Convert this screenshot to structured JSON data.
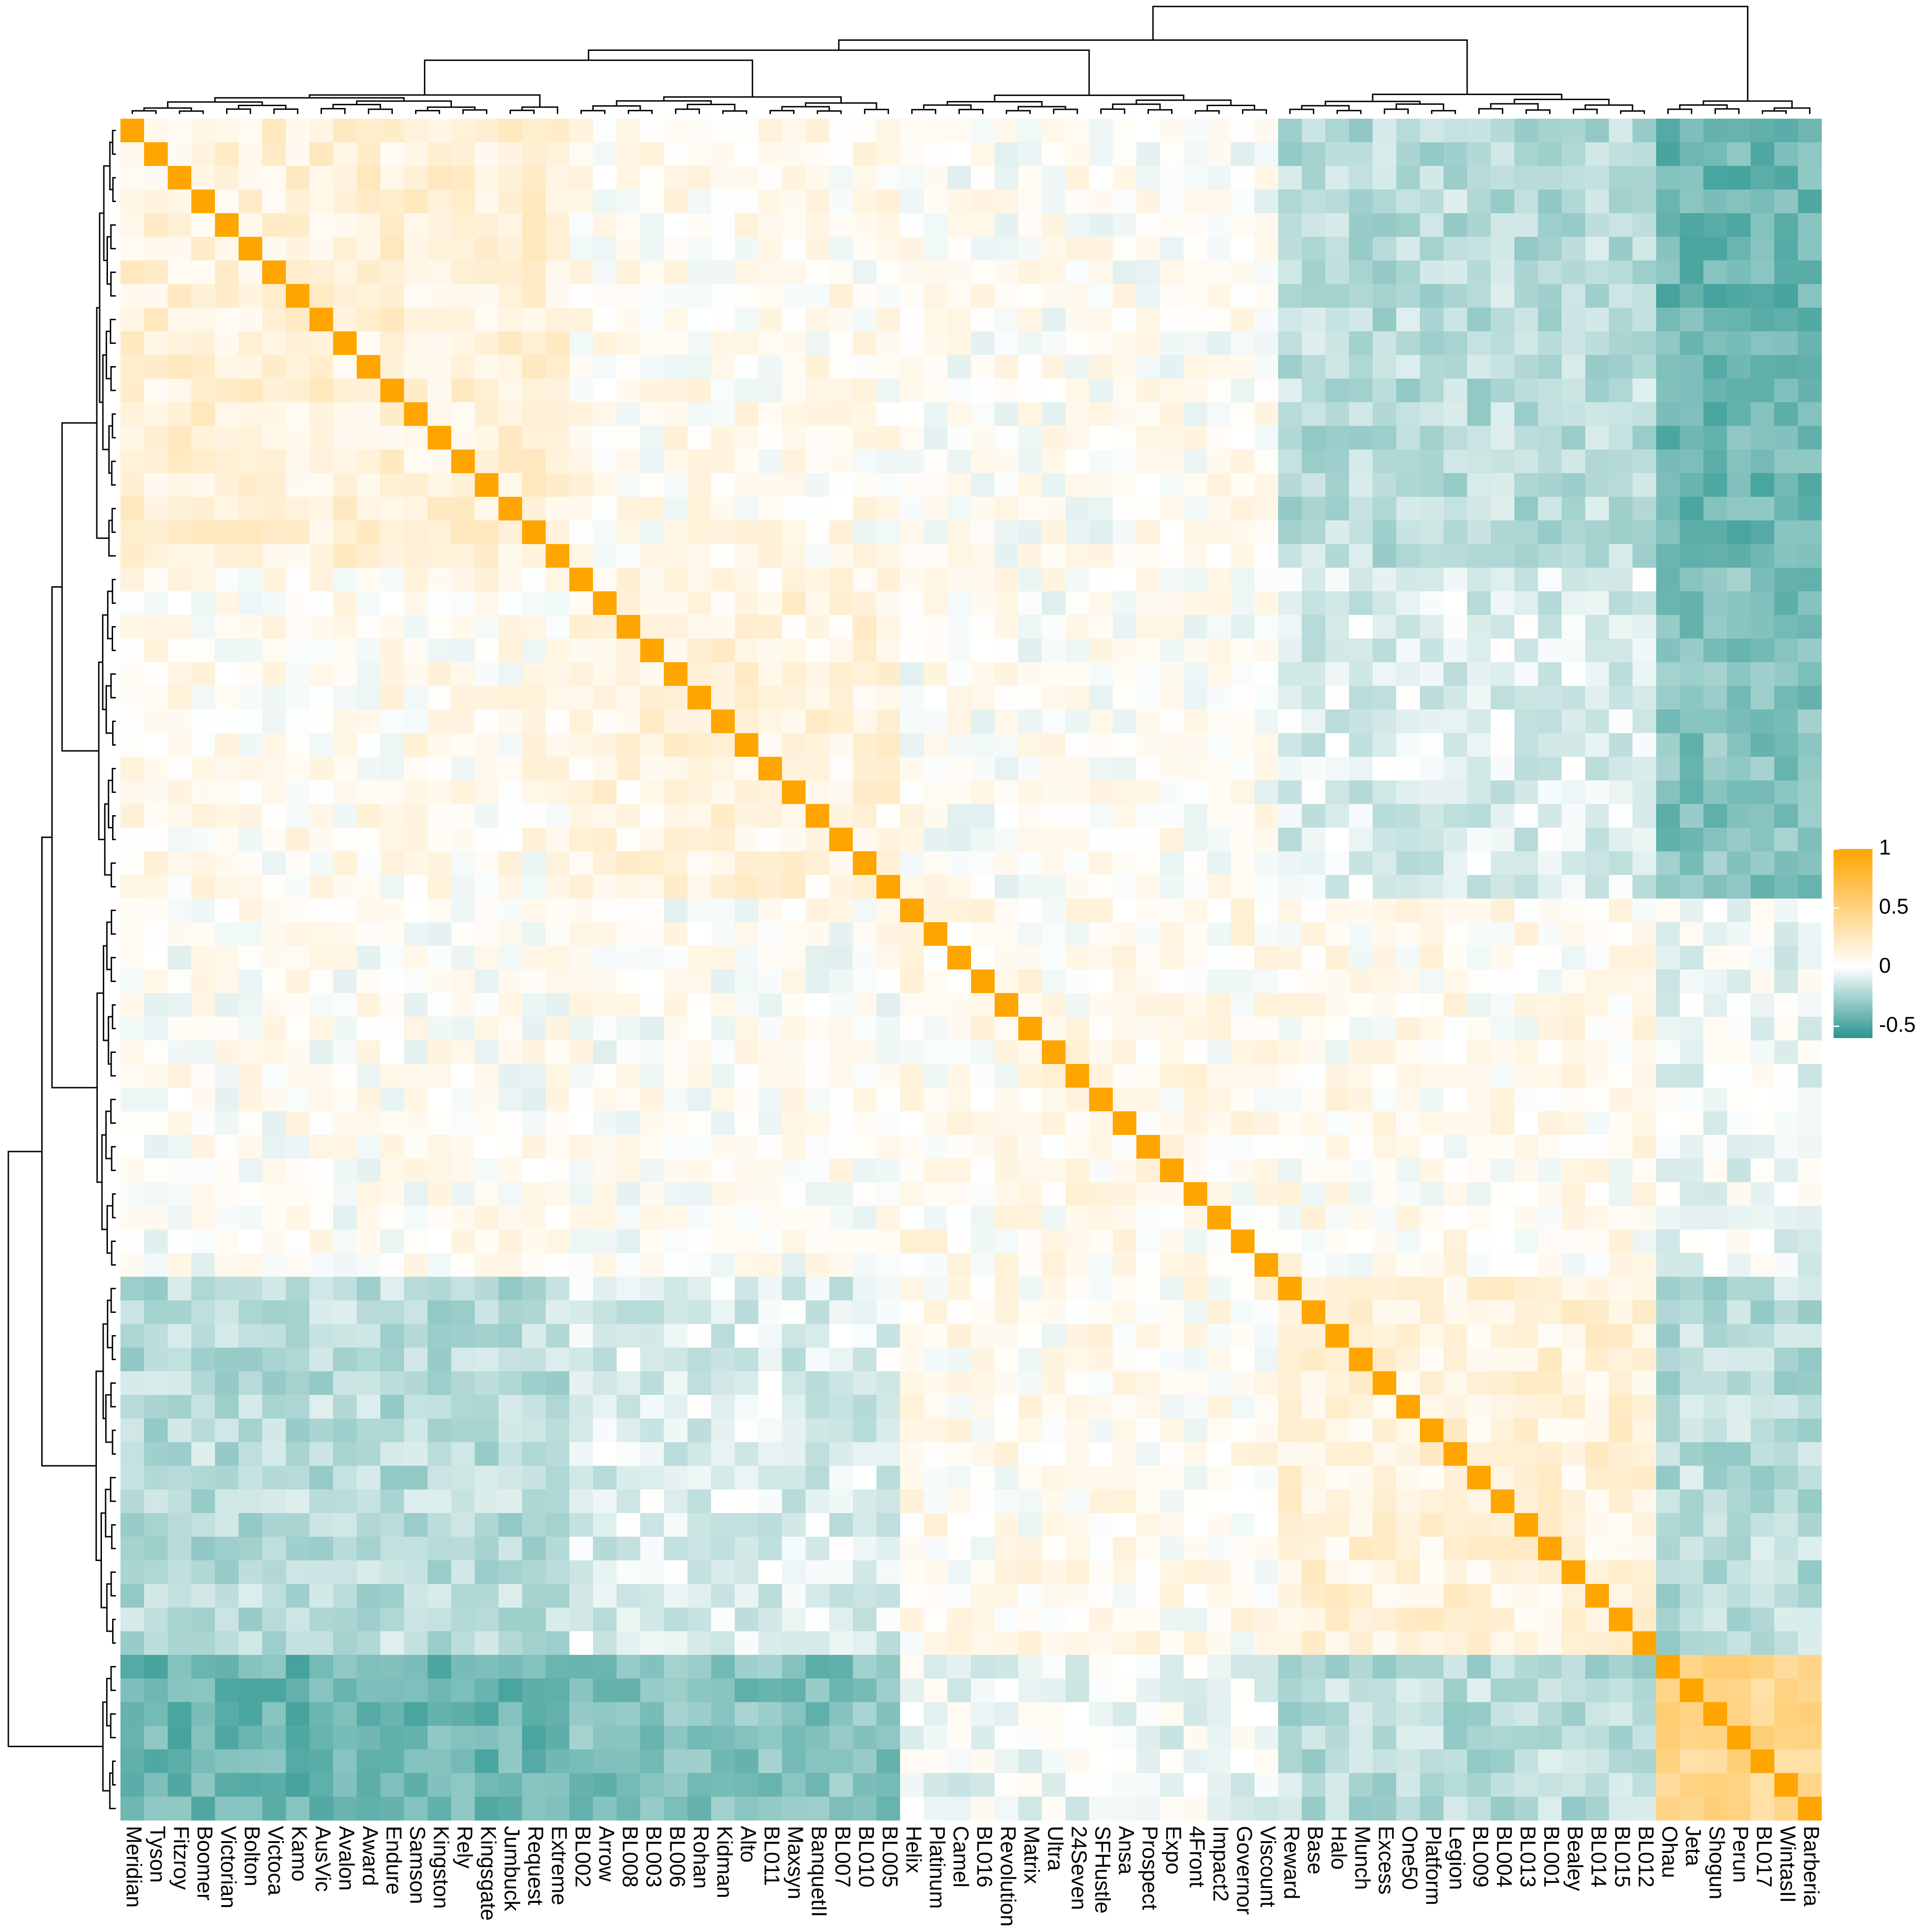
{
  "chart_data": {
    "type": "heatmap",
    "title": "",
    "xlabel": "",
    "ylabel": "",
    "row_dendrogram": true,
    "column_dendrogram": true,
    "labels": [
      "Meridian",
      "Tyson",
      "Fitzroy",
      "Boomer",
      "Victorian",
      "Bolton",
      "Victoca",
      "Kamo",
      "AusVic",
      "Avalon",
      "Award",
      "Endure",
      "Samson",
      "Kingston",
      "Rely",
      "Kingsgate",
      "Jumbuck",
      "Request",
      "Extreme",
      "BL002",
      "Arrow",
      "BL008",
      "BL003",
      "BL006",
      "Rohan",
      "Kidman",
      "Alto",
      "BL011",
      "Maxsyn",
      "BanquetII",
      "BL007",
      "BL010",
      "BL005",
      "Helix",
      "Platinum",
      "Camel",
      "BL016",
      "Revolution",
      "Matrix",
      "Ultra",
      "24Seven",
      "SFHustle",
      "Ansa",
      "Prospect",
      "Expo",
      "4Front",
      "Impact2",
      "Governor",
      "Viscount",
      "Reward",
      "Base",
      "Halo",
      "Munch",
      "Excess",
      "One50",
      "Platform",
      "Legion",
      "BL009",
      "BL004",
      "BL013",
      "BL001",
      "Bealey",
      "BL014",
      "BL015",
      "BL012",
      "Ohau",
      "Jeta",
      "Shogun",
      "Perun",
      "BL017",
      "WintasII",
      "Barberia"
    ],
    "clusters": [
      {
        "members": [
          0,
          18
        ],
        "within": 0.15
      },
      {
        "members": [
          19,
          32
        ],
        "within": 0.12
      },
      {
        "members": [
          33,
          48
        ],
        "within": 0.06
      },
      {
        "members": [
          49,
          64
        ],
        "within": 0.14
      },
      {
        "members": [
          65,
          71
        ],
        "within": 0.45
      }
    ],
    "cluster_correlations": [
      [
        0,
        1,
        0.05
      ],
      [
        0,
        2,
        0.02
      ],
      [
        0,
        3,
        -0.2
      ],
      [
        0,
        4,
        -0.42
      ],
      [
        1,
        2,
        0.02
      ],
      [
        1,
        3,
        -0.1
      ],
      [
        1,
        4,
        -0.35
      ],
      [
        2,
        3,
        0.05
      ],
      [
        2,
        4,
        -0.05
      ],
      [
        3,
        4,
        -0.2
      ]
    ],
    "legend": {
      "ticks": [
        1,
        0.5,
        0,
        -0.5
      ],
      "tick_labels": [
        "1",
        "0.5",
        "0",
        "-0.5"
      ],
      "range": [
        -0.6,
        1
      ],
      "colors": {
        "low": "#2a958e",
        "mid": "#ffffff",
        "high": "#ffa500"
      },
      "placement": "right"
    }
  }
}
